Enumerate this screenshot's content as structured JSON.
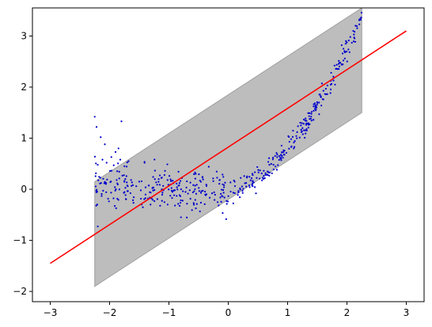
{
  "chart_data": {
    "type": "scatter",
    "title": "",
    "xlabel": "",
    "ylabel": "",
    "xlim": [
      -3.3,
      3.3
    ],
    "ylim": [
      -2.2,
      3.55
    ],
    "grid": false,
    "legend": "none",
    "x_ticks": [
      {
        "value": -3,
        "label": "−3"
      },
      {
        "value": -2,
        "label": "−2"
      },
      {
        "value": -1,
        "label": "−1"
      },
      {
        "value": 0,
        "label": "0"
      },
      {
        "value": 1,
        "label": "1"
      },
      {
        "value": 2,
        "label": "2"
      },
      {
        "value": 3,
        "label": "3"
      }
    ],
    "y_ticks": [
      {
        "value": -2,
        "label": "−2"
      },
      {
        "value": -1,
        "label": "−1"
      },
      {
        "value": 0,
        "label": "0"
      },
      {
        "value": 1,
        "label": "1"
      },
      {
        "value": 2,
        "label": "2"
      },
      {
        "value": 3,
        "label": "3"
      }
    ],
    "band": {
      "color": "#bdbdbd",
      "edge_color": "#9e9e9e",
      "x": [
        -2.25,
        2.25
      ],
      "lower": [
        -1.9,
        1.5
      ],
      "upper": [
        0.15,
        3.55
      ]
    },
    "line": {
      "color": "#ff0000",
      "x": [
        -3.0,
        3.0
      ],
      "y": [
        -1.45,
        3.1
      ]
    },
    "scatter": {
      "color": "#0000cc",
      "x_range": [
        -2.25,
        2.25
      ],
      "count": 500,
      "outliers": [
        {
          "x": -2.25,
          "y": 1.42
        },
        {
          "x": -2.22,
          "y": 1.22
        },
        {
          "x": -2.15,
          "y": 1.02
        },
        {
          "x": -2.08,
          "y": 0.88
        },
        {
          "x": -1.8,
          "y": 1.33
        },
        {
          "x": -1.97,
          "y": 0.63
        },
        {
          "x": -1.9,
          "y": 0.73
        },
        {
          "x": -1.85,
          "y": 0.8
        },
        {
          "x": -2.2,
          "y": 0.48
        },
        {
          "x": -2.12,
          "y": 0.58
        },
        {
          "x": -2.05,
          "y": 0.52
        },
        {
          "x": -1.93,
          "y": 0.47
        },
        {
          "x": -1.82,
          "y": 0.58
        },
        {
          "x": -1.75,
          "y": 0.45
        },
        {
          "x": -1.68,
          "y": 0.55
        }
      ]
    }
  }
}
